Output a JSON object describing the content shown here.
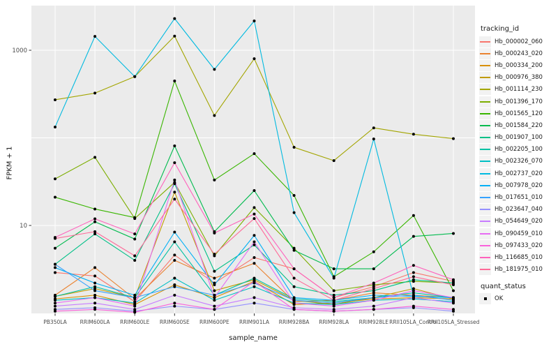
{
  "colors": {
    "panel_background": "#EBEBEB",
    "gridline": "#FFFFFF",
    "tick_mark": "#333333",
    "axis_text": "#4D4D4D",
    "axis_title": "#1A1A1A",
    "legend_key_background": "#F2F2F2",
    "point_marker": "#000000"
  },
  "chart_data": {
    "type": "line",
    "title": "",
    "xlabel": "sample_name",
    "ylabel": "FPKM + 1",
    "y_scale": "log10",
    "ylim": [
      0.95,
      3200
    ],
    "grid": true,
    "y_ticks": [
      {
        "value": 1000,
        "label": "1000"
      },
      {
        "value": 10,
        "label": "10"
      }
    ],
    "y_gridlines": [
      1000,
      100,
      10
    ],
    "categories": [
      "PB350LA",
      "RRIM600LA",
      "RRIM600LE",
      "RRIM600SE",
      "RRIM600PE",
      "RRIM901LA",
      "RRIM928BA",
      "RRIM928LA",
      "RRIM928LE",
      "RRII105LA_Control",
      "RRII105LA_Stressed"
    ],
    "point_marker": {
      "shape": "circle",
      "color": "#000000"
    },
    "legend": {
      "title": "tracking_id",
      "position": "right"
    },
    "legend2": {
      "title": "quant_status",
      "items": [
        {
          "label": "OK",
          "marker": "black-square"
        }
      ]
    },
    "series": [
      {
        "name": "Hb_000002_060",
        "color": "#F8766D",
        "values": [
          2.9,
          2.65,
          1.35,
          4.6,
          2.2,
          4.3,
          3.2,
          1.5,
          2.0,
          2.9,
          2.3
        ]
      },
      {
        "name": "Hb_000243_020",
        "color": "#EA8331",
        "values": [
          1.6,
          3.3,
          1.45,
          4.0,
          2.5,
          3.7,
          1.35,
          1.4,
          1.7,
          1.6,
          1.5
        ]
      },
      {
        "name": "Hb_000334_200",
        "color": "#D89000",
        "values": [
          1.45,
          1.6,
          1.25,
          2.1,
          1.5,
          2.3,
          1.25,
          1.3,
          1.45,
          1.5,
          1.45
        ]
      },
      {
        "name": "Hb_000976_380",
        "color": "#C09B00",
        "values": [
          1.55,
          1.9,
          1.5,
          24,
          1.8,
          2.4,
          1.4,
          1.25,
          1.5,
          1.9,
          1.45
        ]
      },
      {
        "name": "Hb_001114_230",
        "color": "#A3A500",
        "values": [
          272,
          324,
          500,
          1450,
          180,
          800,
          78,
          55,
          130,
          110,
          98
        ]
      },
      {
        "name": "Hb_001396_170",
        "color": "#7CAE00",
        "values": [
          34,
          60,
          12,
          31,
          4.5,
          16,
          5.5,
          1.8,
          2.1,
          2.3,
          2.2
        ]
      },
      {
        "name": "Hb_001565_120",
        "color": "#39B600",
        "values": [
          21,
          15.4,
          12.3,
          446,
          33,
          66,
          22,
          2.6,
          5.0,
          13,
          1.8
        ]
      },
      {
        "name": "Hb_001584_220",
        "color": "#00BB4E",
        "values": [
          5.5,
          11,
          7.0,
          81,
          8.5,
          25,
          5.2,
          3.2,
          3.2,
          7.5,
          8.1
        ]
      },
      {
        "name": "Hb_001907_100",
        "color": "#00C087",
        "values": [
          3.6,
          8.0,
          4.0,
          30,
          3.0,
          6.0,
          2.0,
          1.6,
          1.8,
          2.4,
          2.2
        ]
      },
      {
        "name": "Hb_002205_100",
        "color": "#00C1A3",
        "values": [
          1.55,
          2.0,
          1.5,
          6.5,
          1.6,
          2.5,
          1.45,
          1.35,
          1.5,
          1.7,
          1.5
        ]
      },
      {
        "name": "Hb_002326_070",
        "color": "#00BFC4",
        "values": [
          1.4,
          1.5,
          1.3,
          2.5,
          1.4,
          2.0,
          1.3,
          1.25,
          1.4,
          1.45,
          1.35
        ]
      },
      {
        "name": "Hb_002737_020",
        "color": "#00BAE0",
        "values": [
          133,
          1440,
          500,
          2300,
          605,
          2160,
          14,
          2.5,
          97,
          1.56,
          1.5
        ]
      },
      {
        "name": "Hb_007978_020",
        "color": "#00B0F6",
        "values": [
          3.3,
          2.2,
          1.6,
          8.4,
          2.1,
          7.7,
          1.5,
          1.4,
          1.6,
          1.55,
          1.5
        ]
      },
      {
        "name": "Hb_017651_010",
        "color": "#35A2FF",
        "values": [
          3.6,
          1.8,
          1.5,
          2.0,
          1.6,
          2.2,
          1.4,
          1.3,
          1.5,
          1.6,
          1.4
        ]
      },
      {
        "name": "Hb_023647_040",
        "color": "#9590FF",
        "values": [
          1.1,
          1.15,
          1.05,
          1.2,
          1.1,
          1.3,
          1.1,
          1.05,
          1.1,
          1.15,
          1.05
        ]
      },
      {
        "name": "Hb_054649_020",
        "color": "#C77CFF",
        "values": [
          1.2,
          1.3,
          1.1,
          1.6,
          1.2,
          1.5,
          1.15,
          1.1,
          1.2,
          1.5,
          1.3
        ]
      },
      {
        "name": "Hb_090459_010",
        "color": "#E76BF3",
        "values": [
          1.3,
          1.5,
          1.2,
          33,
          1.5,
          6.5,
          1.3,
          1.2,
          1.4,
          1.8,
          1.5
        ]
      },
      {
        "name": "Hb_097433_020",
        "color": "#FA62DB",
        "values": [
          1.05,
          1.1,
          1.02,
          1.3,
          1.1,
          2.3,
          1.1,
          1.05,
          1.1,
          1.2,
          1.1
        ]
      },
      {
        "name": "Hb_116685_010",
        "color": "#FF62BC",
        "values": [
          7.3,
          11.9,
          8.0,
          52,
          8.2,
          13.5,
          3.2,
          1.5,
          2.2,
          3.5,
          2.4
        ]
      },
      {
        "name": "Hb_181975_010",
        "color": "#FF6A98",
        "values": [
          7.1,
          8.5,
          4.5,
          20,
          4.7,
          12,
          2.5,
          1.4,
          1.9,
          2.6,
          2.1
        ]
      }
    ]
  }
}
